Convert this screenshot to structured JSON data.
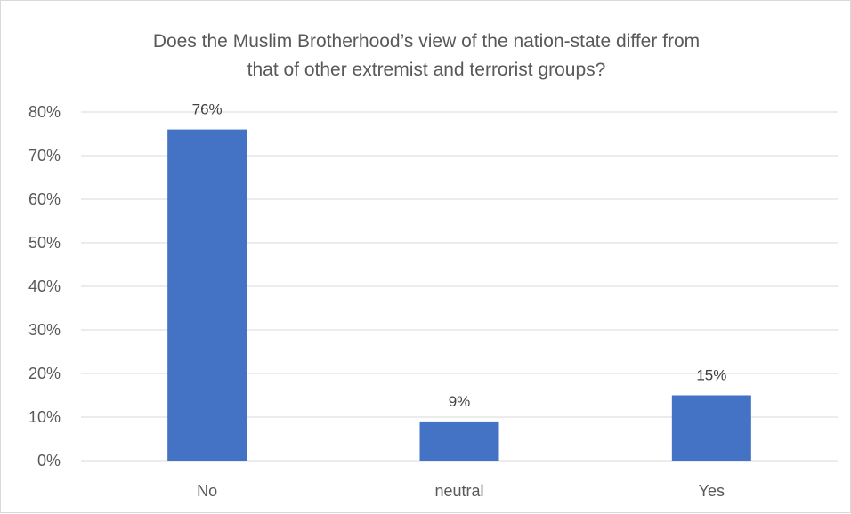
{
  "chart_data": {
    "type": "bar",
    "title_lines": [
      "Does the Muslim Brotherhood’s view of the nation-state differ from",
      "that of other extremist and terrorist groups?"
    ],
    "categories": [
      "No",
      "neutral",
      "Yes"
    ],
    "values": [
      76,
      9,
      15
    ],
    "data_labels": [
      "76%",
      "9%",
      "15%"
    ],
    "yticks": [
      0,
      10,
      20,
      30,
      40,
      50,
      60,
      70,
      80
    ],
    "ytick_labels": [
      "0%",
      "10%",
      "20%",
      "30%",
      "40%",
      "50%",
      "60%",
      "70%",
      "80%"
    ],
    "ylim": [
      0,
      80
    ],
    "grid": true,
    "legend": "none",
    "bar_color": "#4472C4",
    "grid_color": "#d9d9d9"
  }
}
